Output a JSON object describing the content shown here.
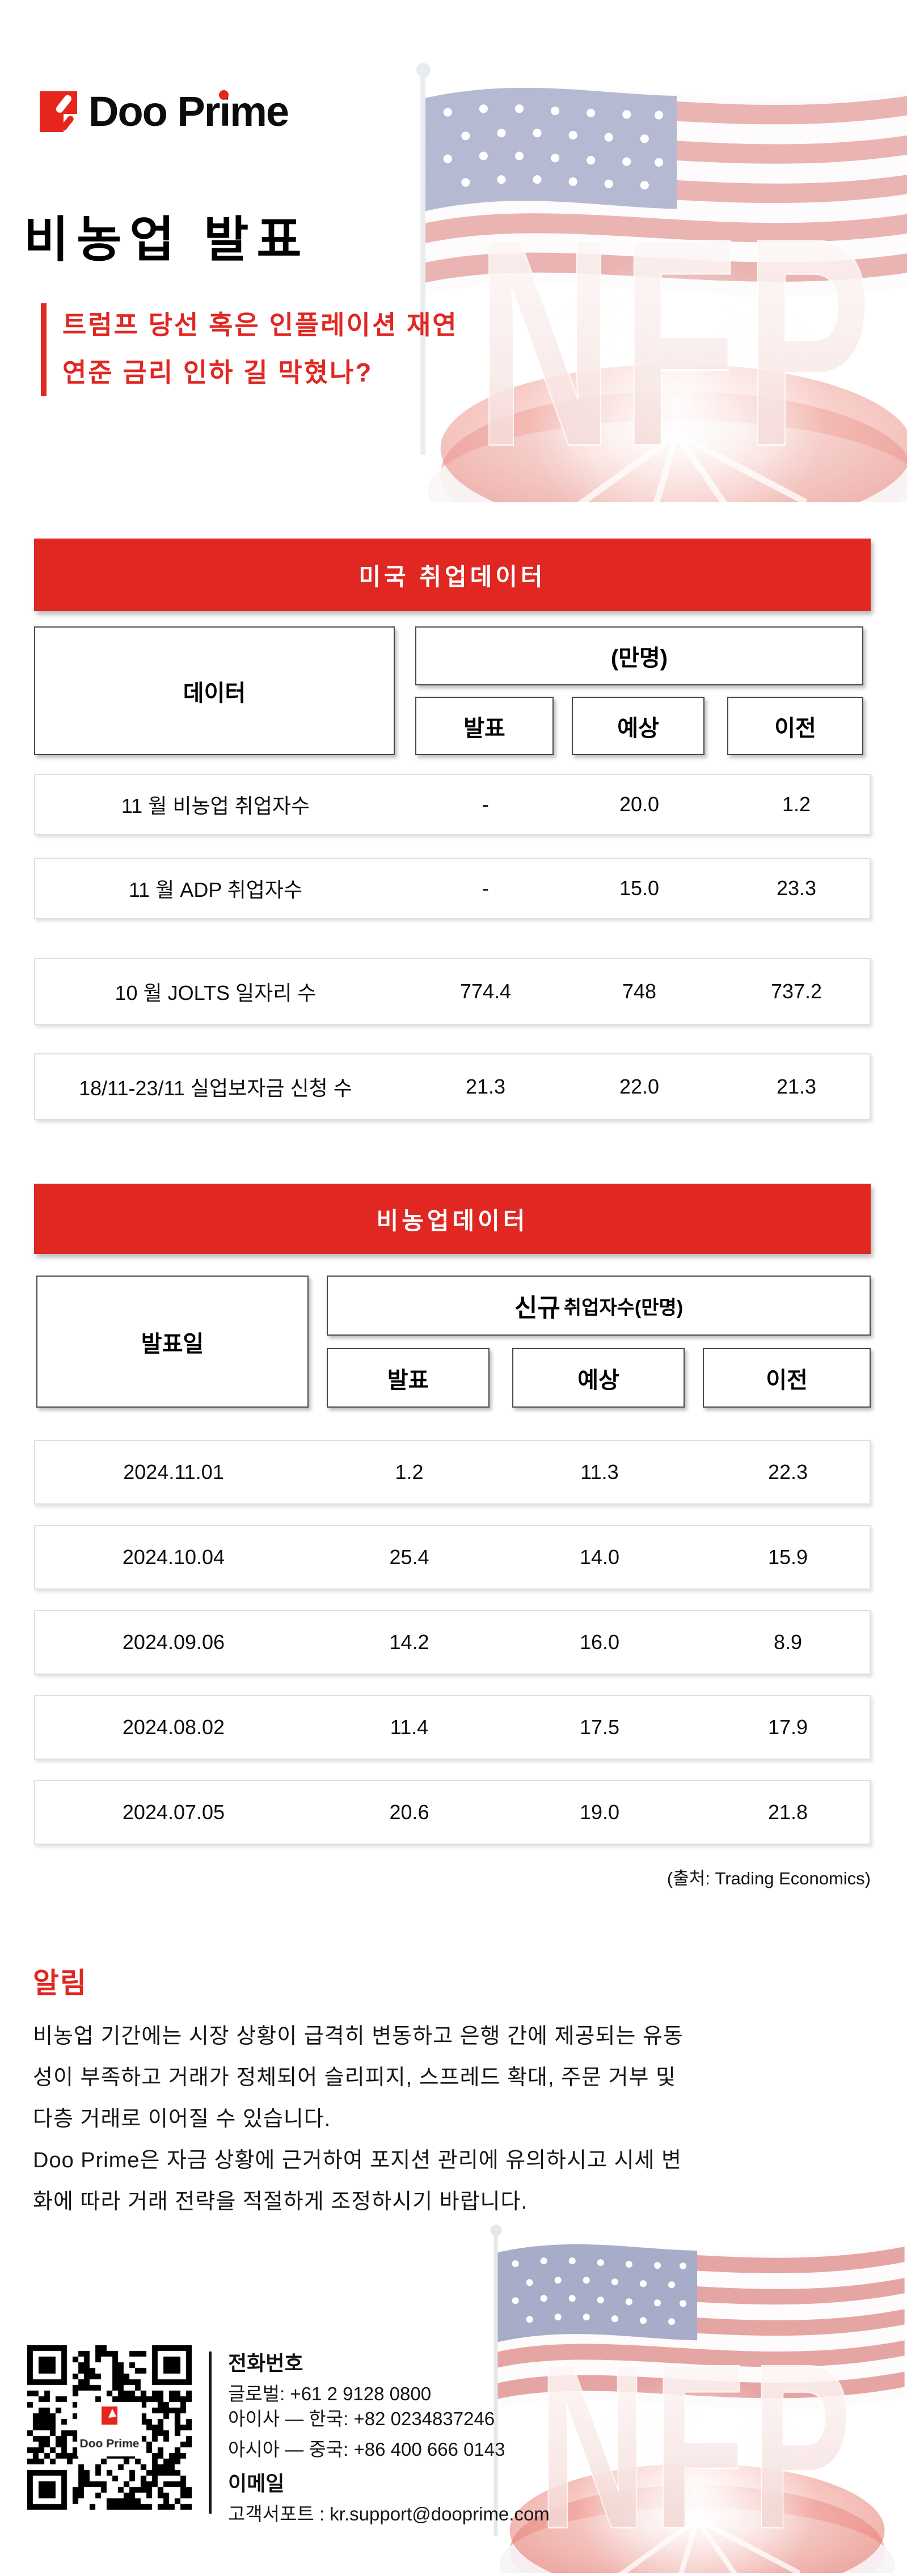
{
  "colors": {
    "brand_red": "#E02722",
    "text_dark": "#0d0d0d",
    "flag_blue": "#47518E",
    "flag_red": "#C8453E"
  },
  "brand": {
    "wordmark_1": "Doo Pr",
    "wordmark_i": "i",
    "wordmark_2": "me"
  },
  "header": {
    "title": "비농업 발표",
    "subtitle_line1": "트럼프 당선 혹은 인플레이션 재연",
    "subtitle_line2": "연준 금리 인하 길 막혔나?"
  },
  "decor": {
    "nfp_text": "NFP"
  },
  "table1": {
    "title": "미국 취업데이터",
    "col_data": "데이터",
    "unit_header": "(만명)",
    "col_actual": "발표",
    "col_expected": "예상",
    "col_previous": "이전",
    "rows": [
      {
        "label": "11 월 비농업 취업자수",
        "actual": "-",
        "expected": "20.0",
        "previous": "1.2"
      },
      {
        "label": "11 월 ADP 취업자수",
        "actual": "-",
        "expected": "15.0",
        "previous": "23.3"
      },
      {
        "label": "10 월 JOLTS 일자리 수",
        "actual": "774.4",
        "expected": "748",
        "previous": "737.2"
      },
      {
        "label": "18/11-23/11 실업보자금 신청 수",
        "actual": "21.3",
        "expected": "22.0",
        "previous": "21.3"
      }
    ]
  },
  "table2": {
    "title": "비농업데이터",
    "col_date": "발표일",
    "unit_header_strong": "신규",
    "unit_header_rest": "취업자수(만명)",
    "col_actual": "발표",
    "col_expected": "예상",
    "col_previous": "이전",
    "rows": [
      {
        "date": "2024.11.01",
        "actual": "1.2",
        "expected": "11.3",
        "previous": "22.3"
      },
      {
        "date": "2024.10.04",
        "actual": "25.4",
        "expected": "14.0",
        "previous": "15.9"
      },
      {
        "date": "2024.09.06",
        "actual": "14.2",
        "expected": "16.0",
        "previous": "8.9"
      },
      {
        "date": "2024.08.02",
        "actual": "11.4",
        "expected": "17.5",
        "previous": "17.9"
      },
      {
        "date": "2024.07.05",
        "actual": "20.6",
        "expected": "19.0",
        "previous": "21.8"
      }
    ]
  },
  "source_note": "(출처:  Trading Economics)",
  "notice": {
    "heading": "알림",
    "lines": [
      "비농업 기간에는 시장 상황이 급격히 변동하고 은행 간에 제공되는 유동",
      "성이 부족하고 거래가 정체되어 슬리피지, 스프레드 확대, 주문 거부 및",
      "다층 거래로 이어질 수 있습니다.",
      "Doo Prime은 자금 상황에 근거하여 포지션 관리에 유의하시고 시세 변",
      "화에 따라 거래 전략을 적절하게 조정하시기 바랍니다."
    ]
  },
  "footer": {
    "phone_heading": "전화번호",
    "phone_lines": [
      "글로벌: +61 2 9128 0800",
      "아이사 — 한국: +82 0234837246",
      "아시아 — 중국: +86 400 666 0143"
    ],
    "email_heading": "이메일",
    "email_line": "고객서포트 : kr.support@dooprime.com",
    "qr_logo_text": "Doo Prime"
  }
}
